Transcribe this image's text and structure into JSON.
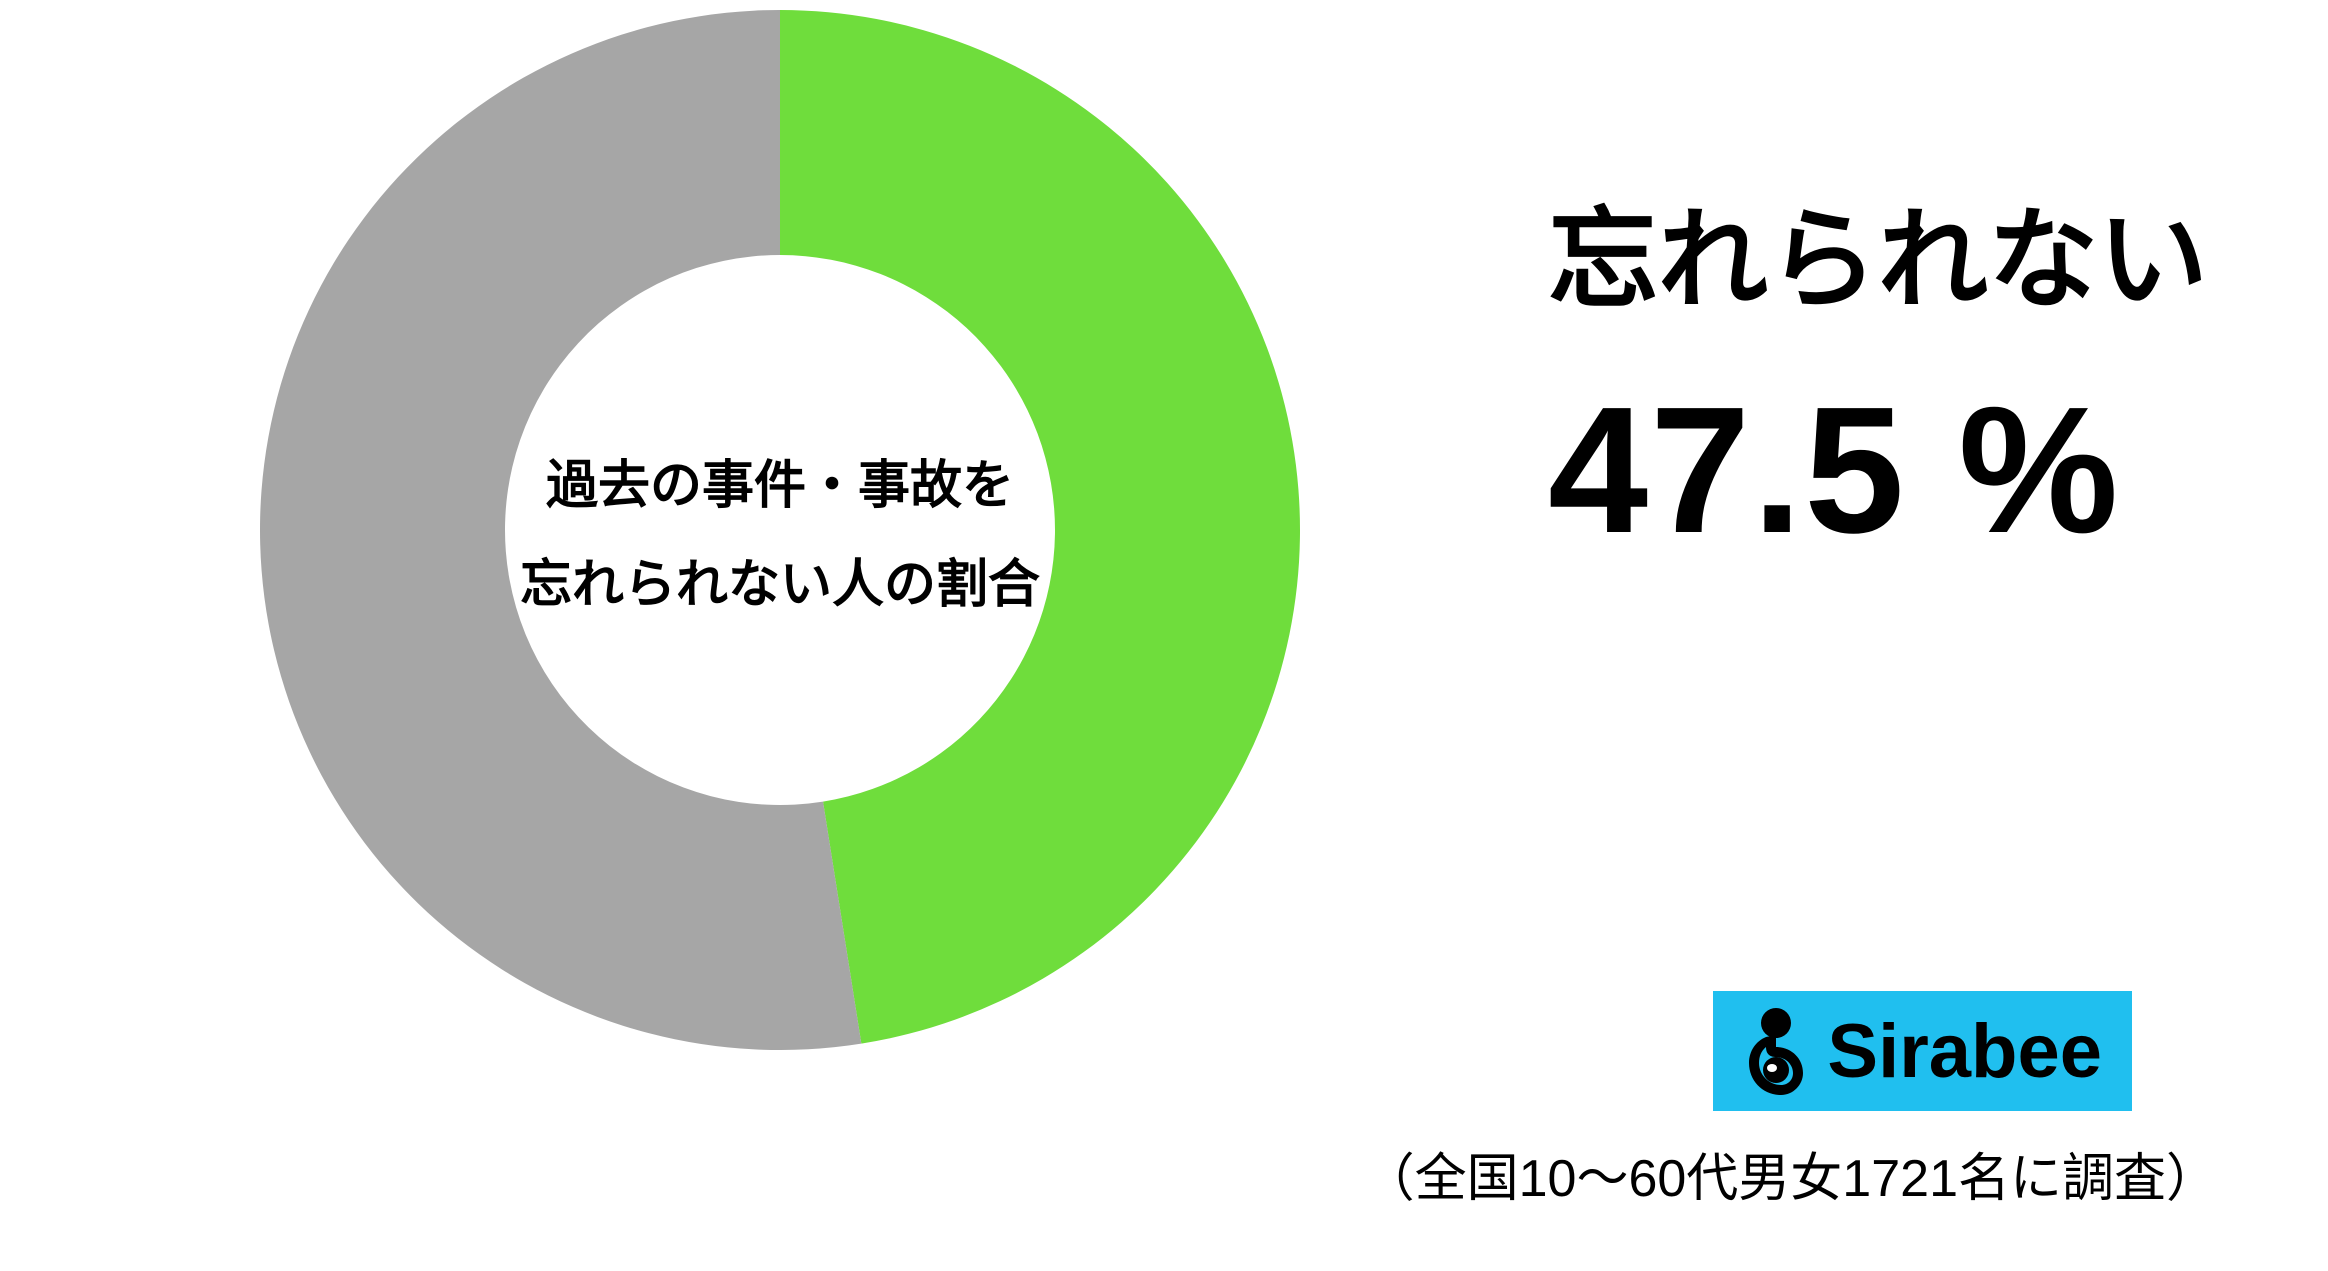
{
  "chart": {
    "type": "donut",
    "slices": [
      {
        "name": "unforgettable",
        "value": 47.5,
        "color": "#6fdd3c"
      },
      {
        "name": "other",
        "value": 52.5,
        "color": "#a6a6a6"
      }
    ],
    "outer_radius": 520,
    "inner_radius": 275,
    "start_angle_deg": -90,
    "direction": "clockwise",
    "background_color": "#ffffff",
    "center_text_line1": "過去の事件・事故を",
    "center_text_line2": "忘れられない人の割合",
    "center_text_fontsize": 52,
    "center_text_weight": 700,
    "center_text_color": "#000000"
  },
  "callout": {
    "label": "忘れられない",
    "label_fontsize": 110,
    "label_weight": 900,
    "label_color": "#000000",
    "percent_text": "47.5 %",
    "percent_fontsize": 180,
    "percent_weight": 900,
    "percent_color": "#000000"
  },
  "logo": {
    "text": "Sirabee",
    "text_color": "#000000",
    "text_fontsize": 76,
    "background_color": "#20bfef",
    "icon_color": "#000000",
    "icon_eye_color": "#ffffff"
  },
  "footnote": {
    "text": "（全国10～60代男女1721名に調査）",
    "fontsize": 52,
    "color": "#000000"
  }
}
